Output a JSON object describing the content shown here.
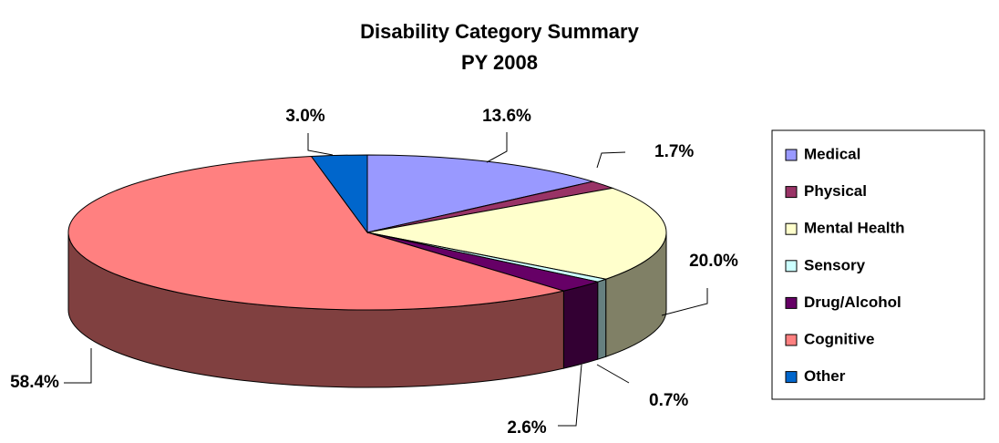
{
  "chart_data": {
    "type": "pie3d",
    "title": "Disability Category Summary",
    "subtitle": "PY 2008",
    "categories": [
      "Medical",
      "Physical",
      "Mental Health",
      "Sensory",
      "Drug/Alcohol",
      "Cognitive",
      "Other"
    ],
    "values": [
      13.6,
      1.7,
      20.0,
      0.7,
      2.6,
      58.4,
      3.0
    ],
    "value_labels": [
      "13.6%",
      "1.7%",
      "20.0%",
      "0.7%",
      "2.6%",
      "58.4%",
      "3.0%"
    ],
    "colors": [
      "#9999ff",
      "#993366",
      "#ffffcc",
      "#ccffff",
      "#660066",
      "#ff8080",
      "#0066cc"
    ],
    "legend": "right"
  }
}
